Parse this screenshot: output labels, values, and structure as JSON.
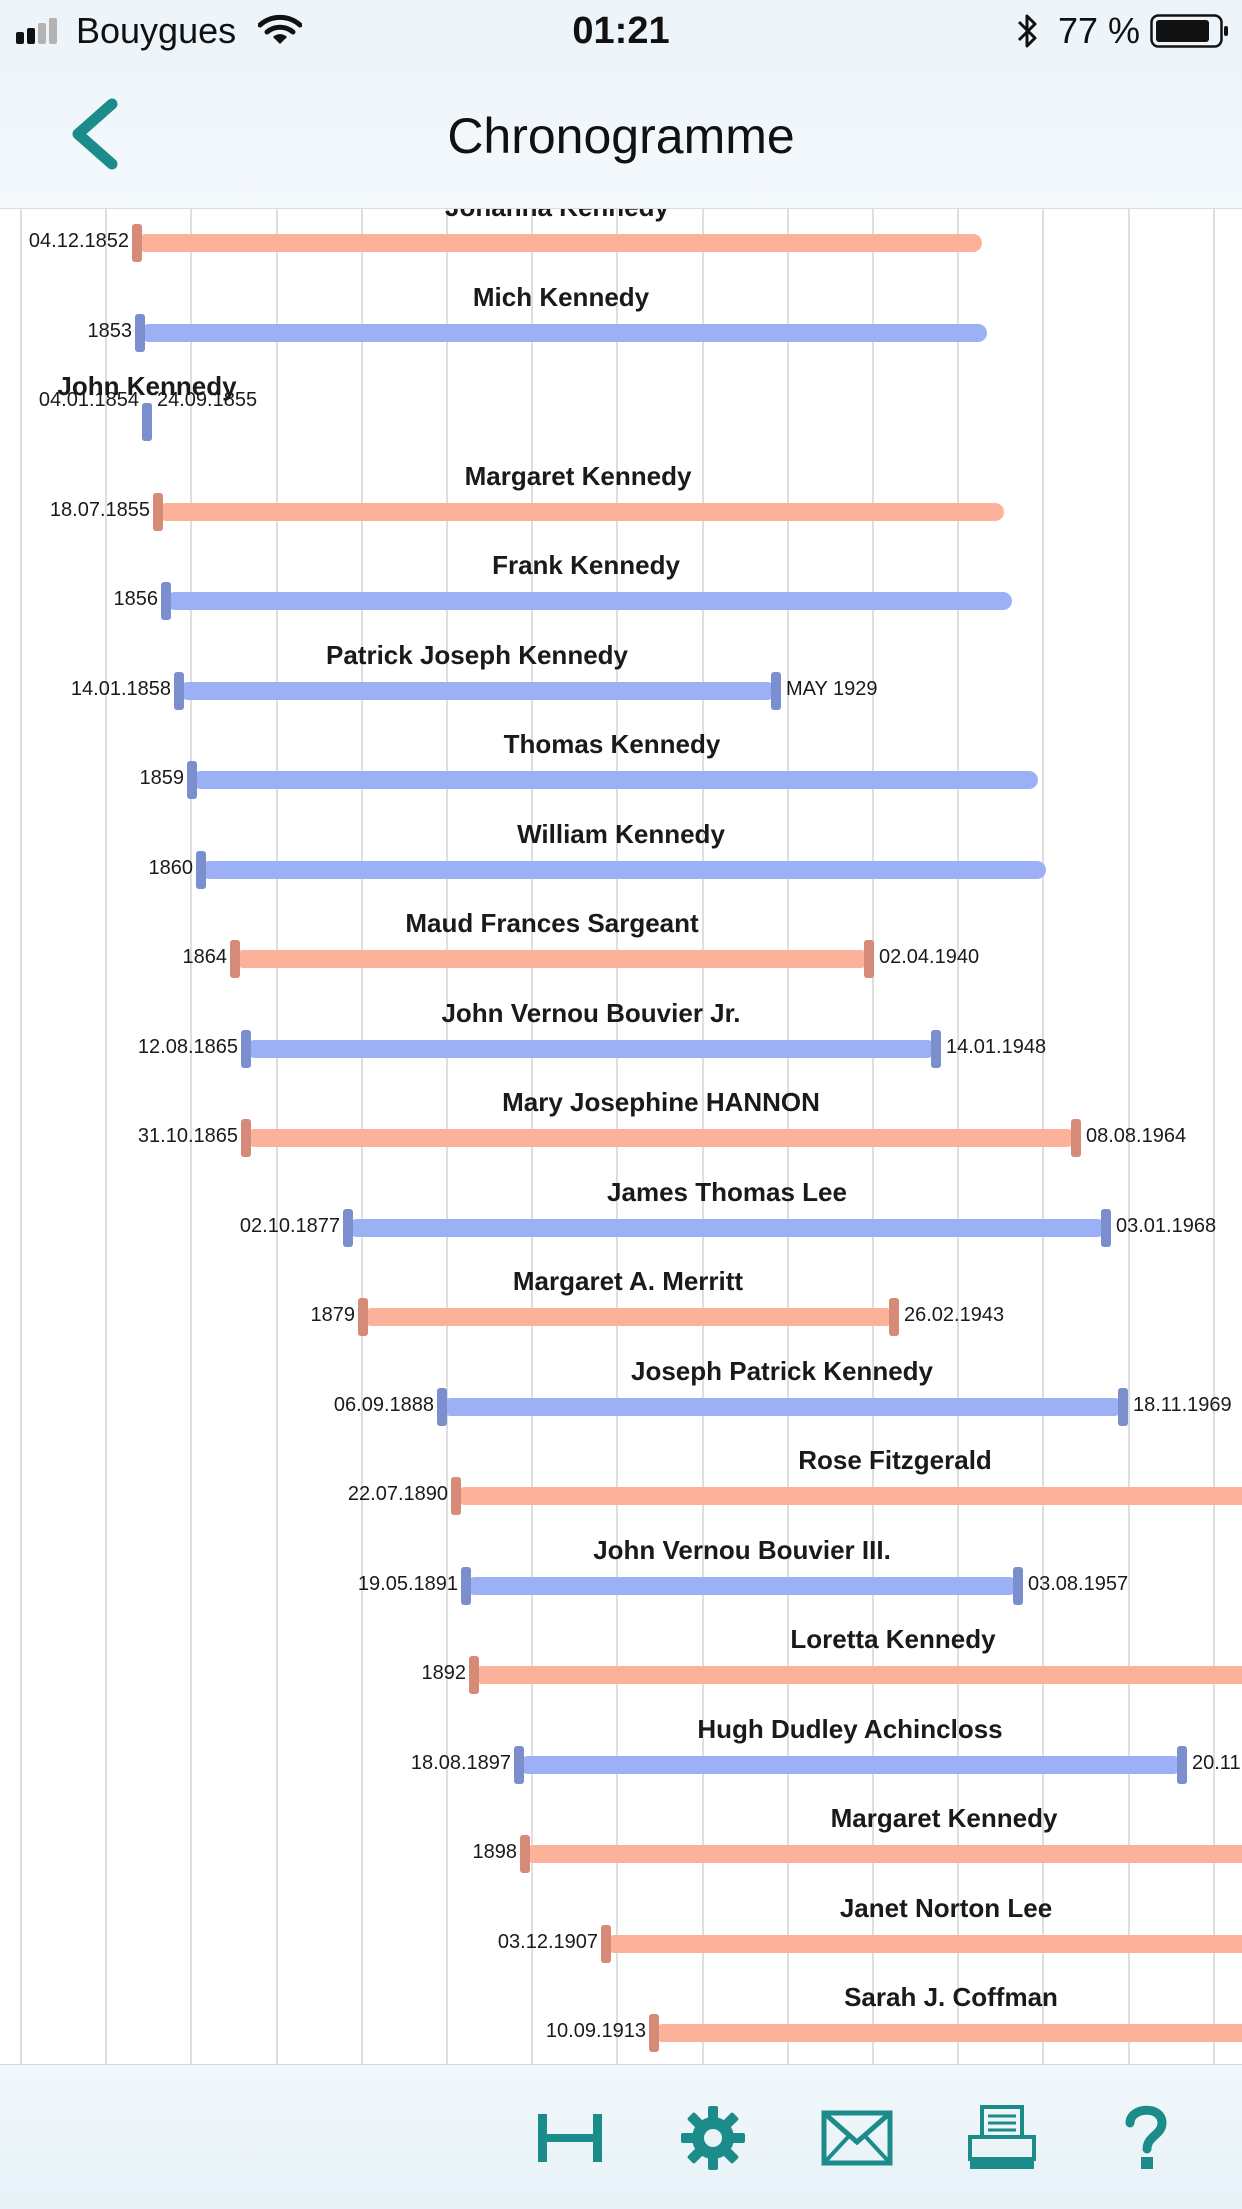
{
  "status_bar": {
    "carrier": "Bouygues",
    "time": "01:21",
    "battery": "77 %"
  },
  "nav": {
    "title": "Chronogramme"
  },
  "colors": {
    "female": "#fcb19a",
    "female_tick": "#d68a78",
    "male": "#9cb0f5",
    "male_tick": "#7b8fcf",
    "accent": "#1b8c8a"
  },
  "timeline": {
    "people": [
      {
        "name": "Johanna Kennedy",
        "sex": "female",
        "start": "04.12.1852",
        "end": ""
      },
      {
        "name": "Mich Kennedy",
        "sex": "male",
        "start": "1853",
        "end": ""
      },
      {
        "name": "John Kennedy",
        "sex": "male",
        "start": "04.01.1854",
        "end": "24.09.1855"
      },
      {
        "name": "Margaret Kennedy",
        "sex": "female",
        "start": "18.07.1855",
        "end": ""
      },
      {
        "name": "Frank Kennedy",
        "sex": "male",
        "start": "1856",
        "end": ""
      },
      {
        "name": "Patrick Joseph Kennedy",
        "sex": "male",
        "start": "14.01.1858",
        "end": "MAY 1929"
      },
      {
        "name": "Thomas Kennedy",
        "sex": "male",
        "start": "1859",
        "end": ""
      },
      {
        "name": "William Kennedy",
        "sex": "male",
        "start": "1860",
        "end": ""
      },
      {
        "name": "Maud Frances Sargeant",
        "sex": "female",
        "start": "1864",
        "end": "02.04.1940"
      },
      {
        "name": "John Vernou Bouvier Jr.",
        "sex": "male",
        "start": "12.08.1865",
        "end": "14.01.1948"
      },
      {
        "name": "Mary Josephine HANNON",
        "sex": "female",
        "start": "31.10.1865",
        "end": "08.08.1964"
      },
      {
        "name": "James Thomas Lee",
        "sex": "male",
        "start": "02.10.1877",
        "end": "03.01.1968"
      },
      {
        "name": "Margaret A. Merritt",
        "sex": "female",
        "start": "1879",
        "end": "26.02.1943"
      },
      {
        "name": "Joseph Patrick Kennedy",
        "sex": "male",
        "start": "06.09.1888",
        "end": "18.11.1969"
      },
      {
        "name": "Rose Fitzgerald",
        "sex": "female",
        "start": "22.07.1890",
        "end": ""
      },
      {
        "name": "John Vernou Bouvier III.",
        "sex": "male",
        "start": "19.05.1891",
        "end": "03.08.1957"
      },
      {
        "name": "Loretta Kennedy",
        "sex": "female",
        "start": "1892",
        "end": ""
      },
      {
        "name": "Hugh Dudley Achincloss",
        "sex": "male",
        "start": "18.08.1897",
        "end": "20.11."
      },
      {
        "name": "Margaret Kennedy",
        "sex": "female",
        "start": "1898",
        "end": ""
      },
      {
        "name": "Janet Norton Lee",
        "sex": "female",
        "start": "03.12.1907",
        "end": ""
      },
      {
        "name": "Sarah J. Coffman",
        "sex": "female",
        "start": "10.09.1913",
        "end": ""
      }
    ]
  },
  "tab_bar": {
    "icons": [
      "fit-width-icon",
      "gear-icon",
      "mail-icon",
      "print-icon",
      "help-icon"
    ]
  }
}
